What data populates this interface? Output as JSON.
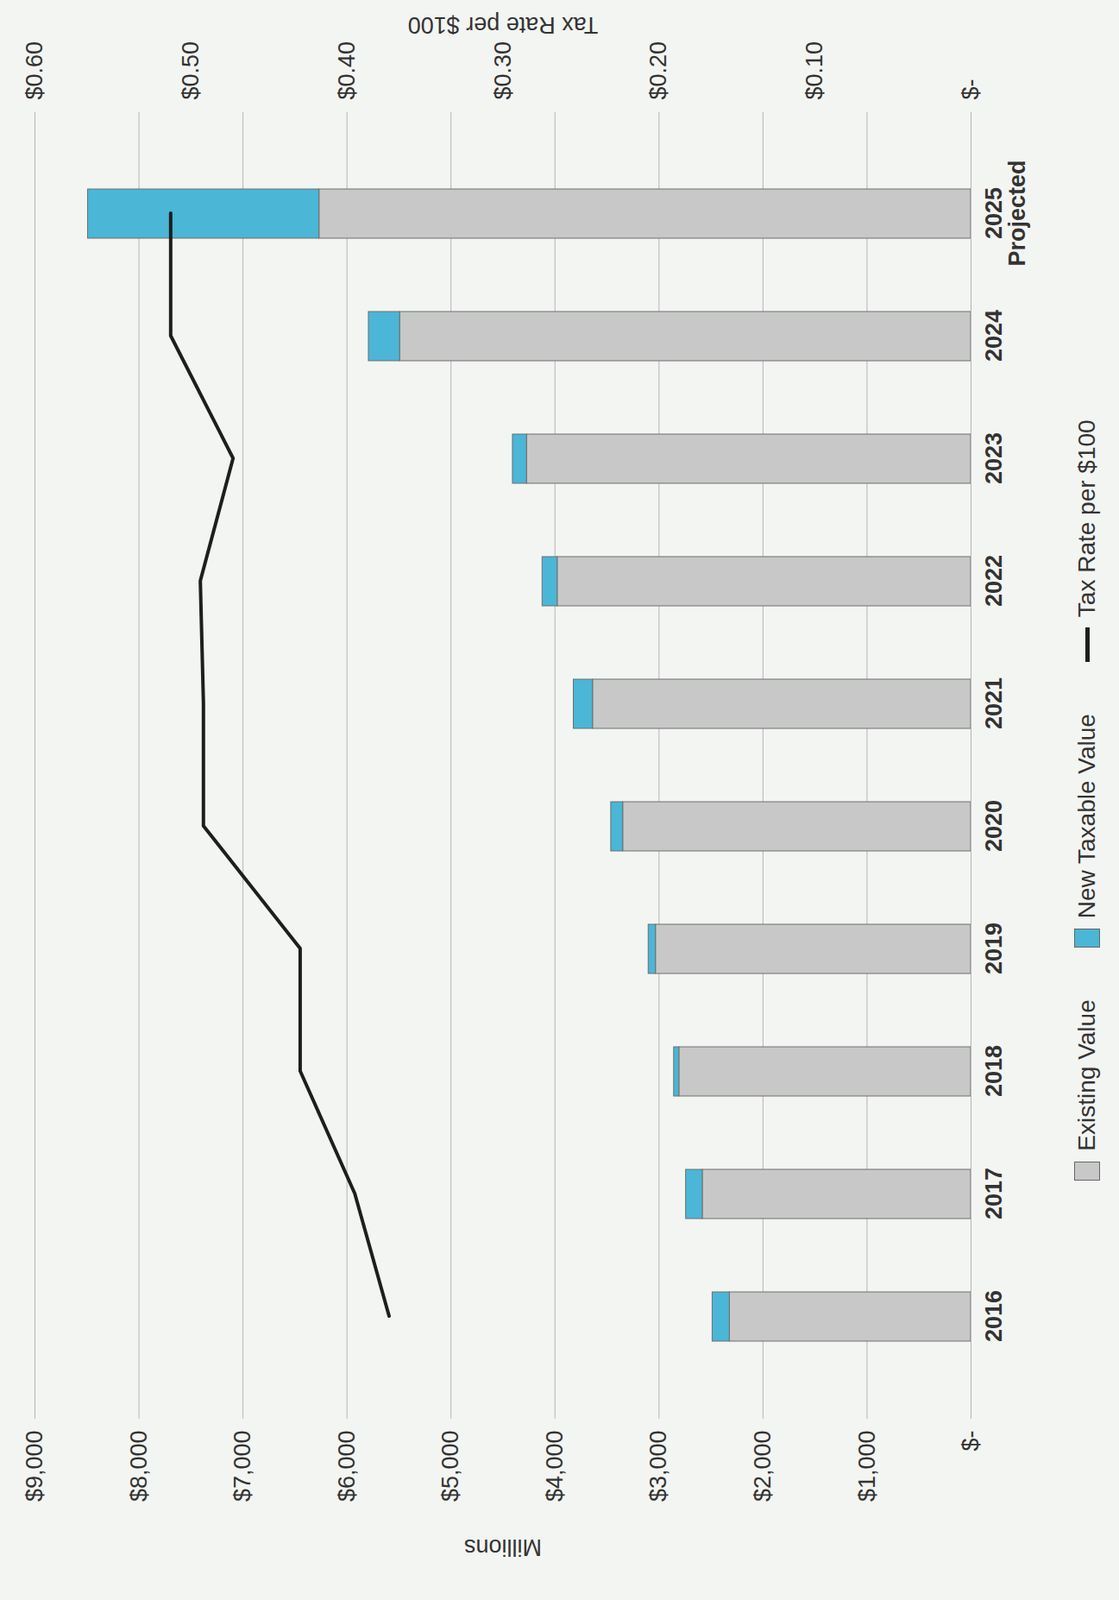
{
  "chart_data": {
    "type": "bar",
    "stacked": true,
    "categories": [
      "2016",
      "2017",
      "2018",
      "2019",
      "2020",
      "2021",
      "2022",
      "2023",
      "2024",
      "2025\nProjected"
    ],
    "series": [
      {
        "name": "Existing Value",
        "color": "#c8c8c8",
        "values": [
          2320,
          2580,
          2805,
          3030,
          3345,
          3635,
          3975,
          4270,
          5490,
          6265
        ]
      },
      {
        "name": "New Taxable Value",
        "color": "#4bb6d6",
        "values": [
          165,
          160,
          50,
          70,
          115,
          185,
          145,
          135,
          300,
          2225
        ]
      },
      {
        "name": "Tax Rate per $100",
        "type": "line",
        "axis": "y2",
        "color": "#1e1e1e",
        "values": [
          0.373,
          0.395,
          0.43,
          0.43,
          0.492,
          0.492,
          0.494,
          0.473,
          0.513,
          0.513
        ]
      }
    ],
    "ylabel": "Millions",
    "y2label": "Tax Rate per $100",
    "ylim": [
      0,
      9000
    ],
    "yticks": [
      {
        "value": 0,
        "label": "$-"
      },
      {
        "value": 1000,
        "label": "$1,000"
      },
      {
        "value": 2000,
        "label": "$2,000"
      },
      {
        "value": 3000,
        "label": "$3,000"
      },
      {
        "value": 4000,
        "label": "$4,000"
      },
      {
        "value": 5000,
        "label": "$5,000"
      },
      {
        "value": 6000,
        "label": "$6,000"
      },
      {
        "value": 7000,
        "label": "$7,000"
      },
      {
        "value": 8000,
        "label": "$8,000"
      },
      {
        "value": 9000,
        "label": "$9,000"
      }
    ],
    "y2lim": [
      0,
      0.6
    ],
    "y2ticks": [
      {
        "value": 0,
        "label": "$-"
      },
      {
        "value": 0.1,
        "label": "$0.10"
      },
      {
        "value": 0.2,
        "label": "$0.20"
      },
      {
        "value": 0.3,
        "label": "$0.30"
      },
      {
        "value": 0.4,
        "label": "$0.40"
      },
      {
        "value": 0.5,
        "label": "$0.50"
      },
      {
        "value": 0.6,
        "label": "$0.60"
      }
    ],
    "grid": true,
    "legend": "bottom"
  }
}
